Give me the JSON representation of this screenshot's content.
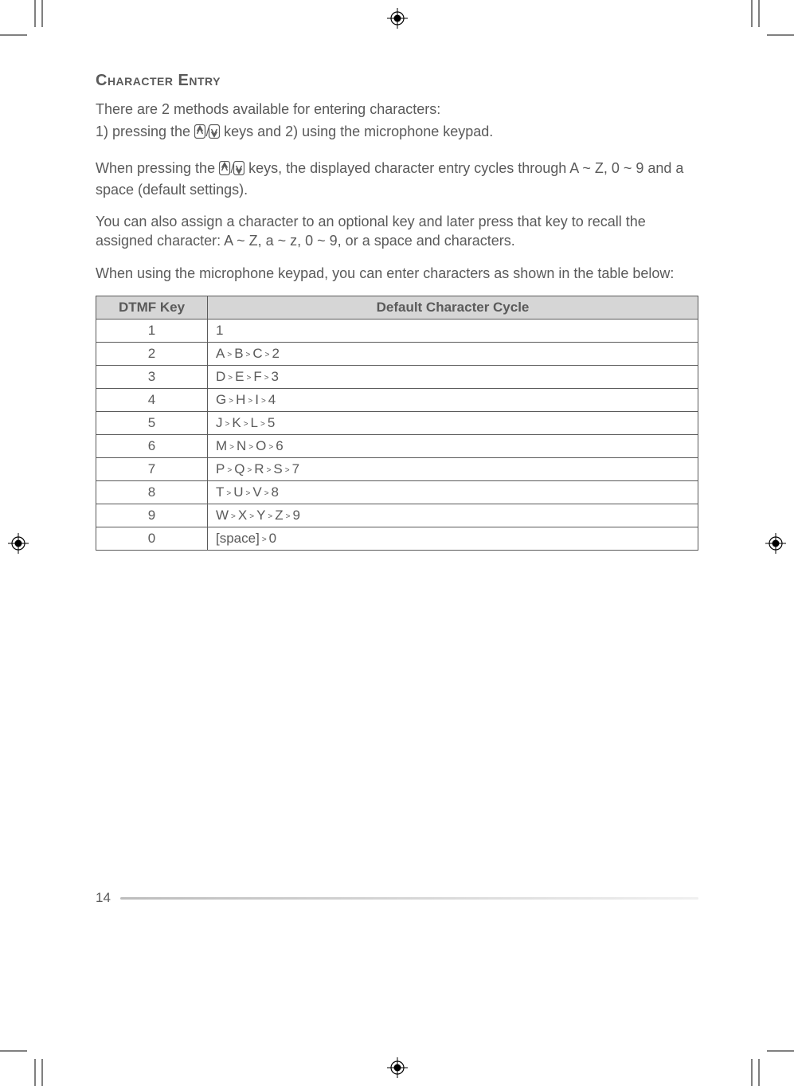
{
  "heading": "Character Entry",
  "intro": {
    "line1": "There are 2 methods available for entering characters:",
    "line2_a": "1) pressing the ",
    "line2_b": " keys and 2) using the microphone keypad."
  },
  "para1_a": "When pressing the ",
  "para1_b": " keys, the displayed character entry cycles through A ~ Z, 0 ~ 9 and a space (default settings).",
  "para2": "You can also assign a character to an optional key and later press that key to recall the assigned character:  A ~ Z, a ~ z, 0 ~ 9, or a space and characters.",
  "para3": "When using the microphone keypad, you can enter characters as shown in the table below:",
  "table": {
    "headers": {
      "key": "DTMF Key",
      "cycle": "Default Character Cycle"
    },
    "rows": [
      {
        "key": "1",
        "cycle": [
          "1"
        ]
      },
      {
        "key": "2",
        "cycle": [
          "A",
          "B",
          "C",
          "2"
        ]
      },
      {
        "key": "3",
        "cycle": [
          "D",
          "E",
          "F",
          "3"
        ]
      },
      {
        "key": "4",
        "cycle": [
          "G",
          "H",
          "I",
          "4"
        ]
      },
      {
        "key": "5",
        "cycle": [
          "J",
          "K",
          "L",
          "5"
        ]
      },
      {
        "key": "6",
        "cycle": [
          "M",
          "N",
          "O",
          "6"
        ]
      },
      {
        "key": "7",
        "cycle": [
          "P",
          "Q",
          "R",
          "S",
          "7"
        ]
      },
      {
        "key": "8",
        "cycle": [
          "T",
          "U",
          "V",
          "8"
        ]
      },
      {
        "key": "9",
        "cycle": [
          "W",
          "X",
          "Y",
          "Z",
          "9"
        ]
      },
      {
        "key": "0",
        "cycle": [
          "[space]",
          "0"
        ]
      }
    ]
  },
  "page_number": "14",
  "colors": {
    "text": "#5a5a5a",
    "header_bg": "#d6d6d6",
    "border": "#5a5a5a",
    "rule_start": "#bdbdbd",
    "rule_end": "#f0f0f0"
  }
}
